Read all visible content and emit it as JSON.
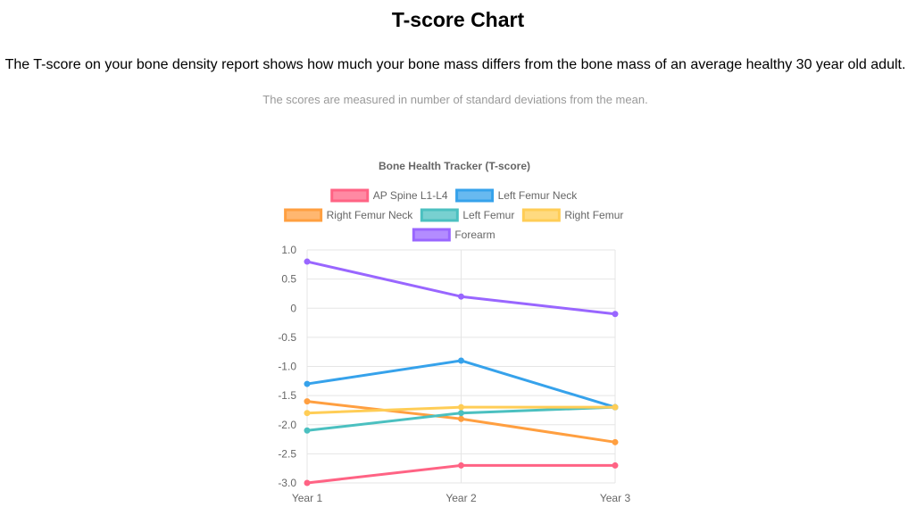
{
  "page": {
    "title": "T-score Chart",
    "intro": "The T-score on your bone density report shows how much your bone mass differs from the bone mass of an average healthy 30 year old adult.",
    "note": "The scores are measured in number of standard deviations from the mean."
  },
  "chart_data": {
    "type": "line",
    "title": "Bone Health Tracker (T-score)",
    "xlabel": "",
    "ylabel": "",
    "categories": [
      "Year 1",
      "Year 2",
      "Year 3"
    ],
    "ylim": [
      -3.0,
      1.0
    ],
    "yticks": [
      "1.0",
      "0.5",
      "0",
      "-0.5",
      "-1.0",
      "-1.5",
      "-2.0",
      "-2.5",
      "-3.0"
    ],
    "grid": true,
    "legend_position": "top",
    "series": [
      {
        "name": "AP Spine L1-L4",
        "color": "#ff6384",
        "values": [
          -3.0,
          -2.7,
          -2.7
        ]
      },
      {
        "name": "Left Femur Neck",
        "color": "#36a2eb",
        "values": [
          -1.3,
          -0.9,
          -1.7
        ]
      },
      {
        "name": "Right Femur Neck",
        "color": "#ff9f40",
        "values": [
          -1.6,
          -1.9,
          -2.3
        ]
      },
      {
        "name": "Left Femur",
        "color": "#4bc0c0",
        "values": [
          -2.1,
          -1.8,
          -1.7
        ]
      },
      {
        "name": "Right Femur",
        "color": "#ffcd56",
        "values": [
          -1.8,
          -1.7,
          -1.7
        ]
      },
      {
        "name": "Forearm",
        "color": "#9966ff",
        "values": [
          0.8,
          0.2,
          -0.1
        ]
      }
    ]
  }
}
